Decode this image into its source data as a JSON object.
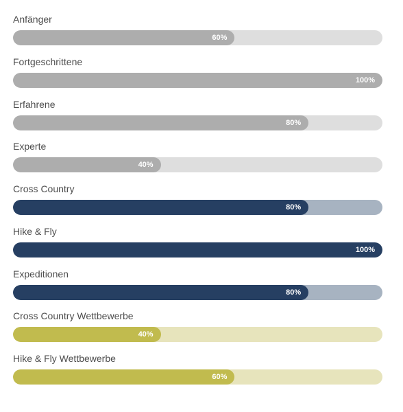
{
  "themes": {
    "gray": {
      "fill": "#adadad",
      "track": "#dedede"
    },
    "navy": {
      "fill": "#263f62",
      "track": "#a7b3c1"
    },
    "olive": {
      "fill": "#c1bb4e",
      "track": "#e7e4bc"
    }
  },
  "skills": [
    {
      "label": "Anfänger",
      "percent": 60,
      "percent_text": "60%",
      "theme": "gray"
    },
    {
      "label": "Fortgeschrittene",
      "percent": 100,
      "percent_text": "100%",
      "theme": "gray"
    },
    {
      "label": "Erfahrene",
      "percent": 80,
      "percent_text": "80%",
      "theme": "gray"
    },
    {
      "label": "Experte",
      "percent": 40,
      "percent_text": "40%",
      "theme": "gray"
    },
    {
      "label": "Cross Country",
      "percent": 80,
      "percent_text": "80%",
      "theme": "navy"
    },
    {
      "label": "Hike & Fly",
      "percent": 100,
      "percent_text": "100%",
      "theme": "navy"
    },
    {
      "label": "Expeditionen",
      "percent": 80,
      "percent_text": "80%",
      "theme": "navy"
    },
    {
      "label": "Cross Country Wettbewerbe",
      "percent": 40,
      "percent_text": "40%",
      "theme": "olive"
    },
    {
      "label": "Hike & Fly Wettbewerbe",
      "percent": 60,
      "percent_text": "60%",
      "theme": "olive"
    }
  ]
}
